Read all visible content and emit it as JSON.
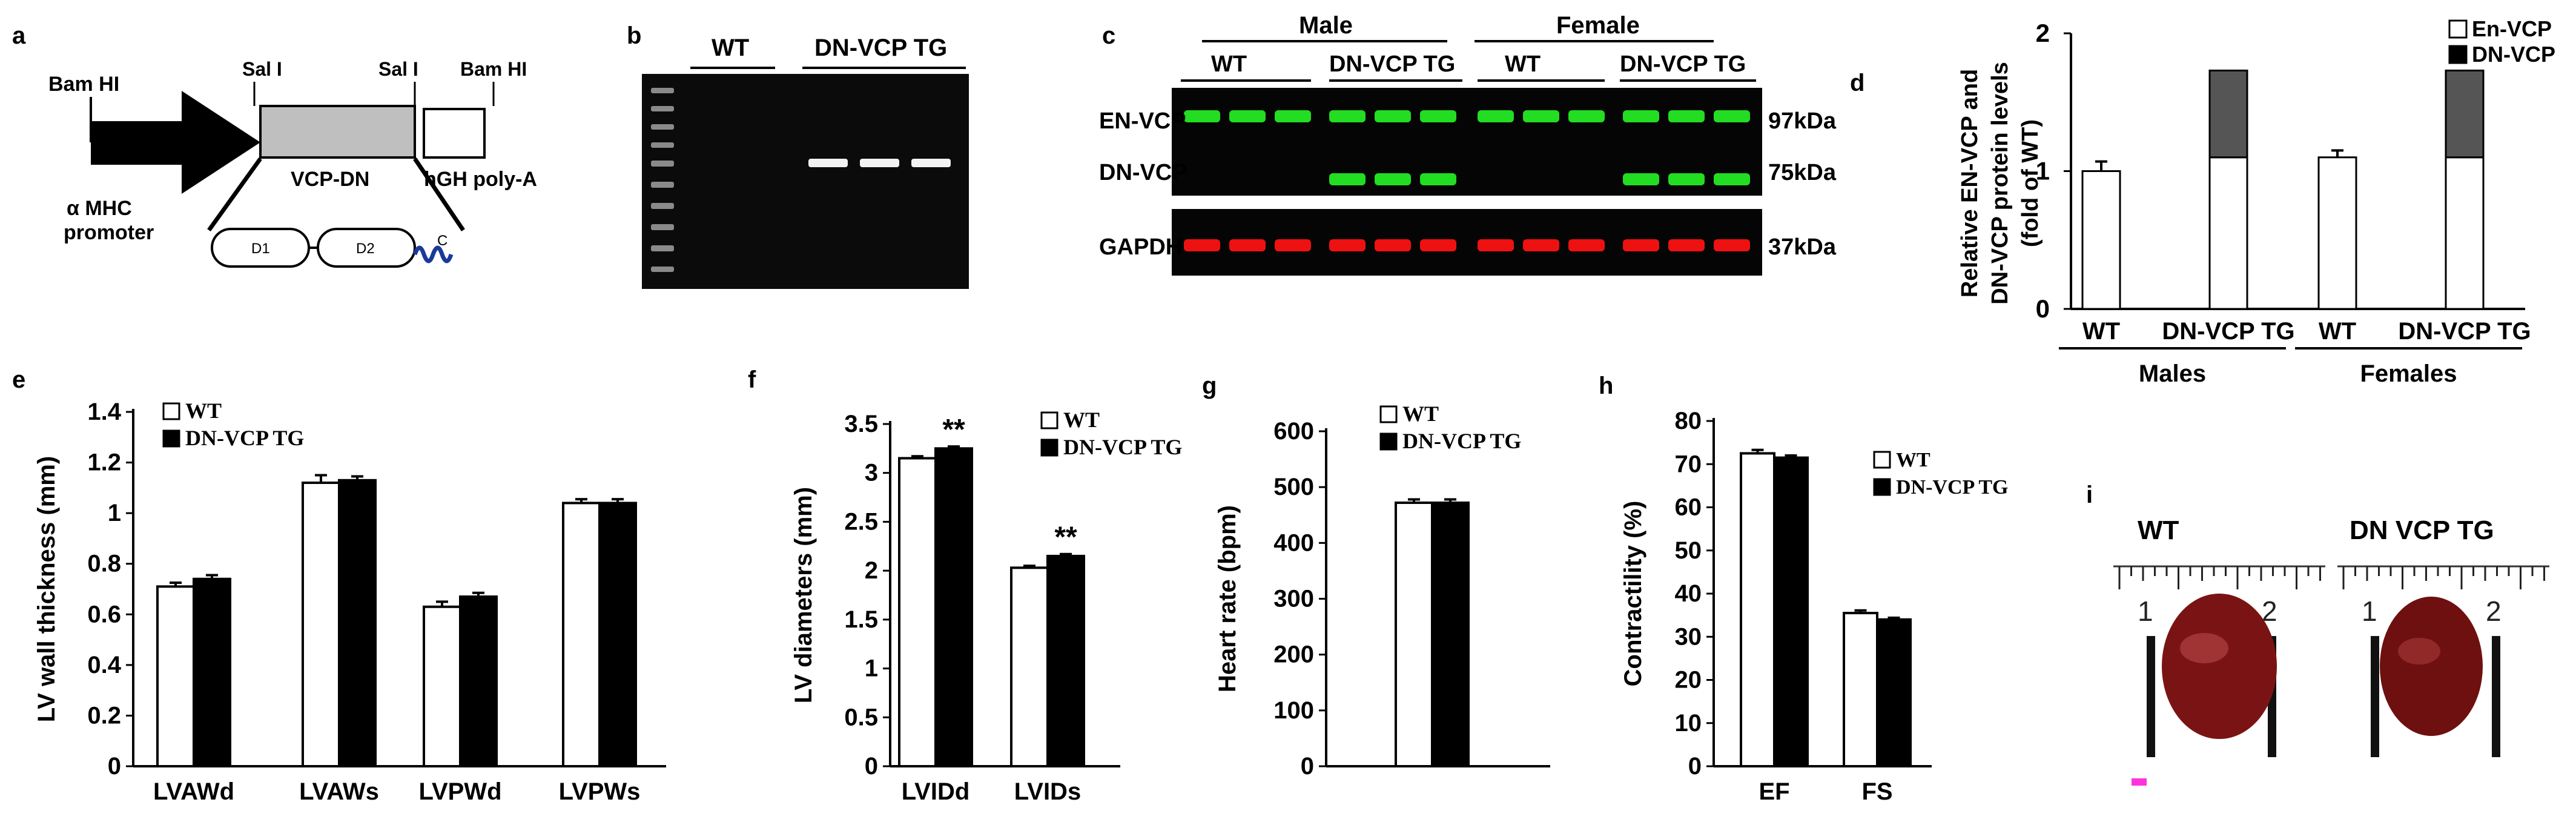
{
  "panel_letters": {
    "a": "a",
    "b": "b",
    "c": "c",
    "d": "d",
    "e": "e",
    "f": "f",
    "g": "g",
    "h": "h",
    "i": "i"
  },
  "panel_a": {
    "bamhi_left": "Bam HI",
    "sali_1": "Sal I",
    "sali_2": "Sal I",
    "bamhi_right": "Bam HI",
    "promoter": "α MHC",
    "promoter2": "promoter",
    "vcp": "VCP-DN",
    "hgh": "hGH poly-A",
    "d1": "D1",
    "d2": "D2",
    "c": "C"
  },
  "panel_b": {
    "wt": "WT",
    "tg": "DN-VCP TG"
  },
  "panel_c": {
    "male": "Male",
    "female": "Female",
    "wt1": "WT",
    "tg1": "DN-VCP TG",
    "wt2": "WT",
    "tg2": "DN-VCP TG",
    "row1": "EN-VCP",
    "row2": "DN-VCP",
    "row3": "GAPDH",
    "kda1": "97kDa",
    "kda2": "75kDa",
    "kda3": "37kDa",
    "green": "#22dd22",
    "red": "#ee1111"
  },
  "chart_data": [
    {
      "panel": "d",
      "type": "bar",
      "stacked": true,
      "ylabel_lines": [
        "Relative EN-VCP and",
        "DN-VCP protein levels",
        "(fold of WT)"
      ],
      "ylim": [
        0,
        2
      ],
      "yticks": [
        0,
        1,
        2
      ],
      "categories": [
        "WT",
        "DN-VCP TG",
        "WT",
        "DN-VCP TG"
      ],
      "groups": [
        {
          "label": "Males",
          "span": [
            0,
            1
          ]
        },
        {
          "label": "Females",
          "span": [
            2,
            3
          ]
        }
      ],
      "series": [
        {
          "name": "En-VCP",
          "color": "#ffffff",
          "values": [
            1.0,
            1.1,
            1.1,
            1.1
          ],
          "err": [
            0.07,
            0,
            0.05,
            0
          ]
        },
        {
          "name": "DN-VCP",
          "color": "#555555",
          "values": [
            0,
            0.63,
            0,
            0.63
          ]
        }
      ],
      "legend": "top-right"
    },
    {
      "panel": "e",
      "type": "bar",
      "ylabel": "LV wall thickness (mm)",
      "ylim": [
        0,
        1.4
      ],
      "yticks": [
        "0",
        "0.2",
        "0.4",
        "0.6",
        "0.8",
        "1",
        "1.2",
        "1.4"
      ],
      "categories": [
        "LVAWd",
        "LVAWs",
        "LVPWd",
        "LVPWs"
      ],
      "series": [
        {
          "name": "WT",
          "color": "#ffffff",
          "values": [
            0.71,
            1.12,
            0.63,
            1.04
          ],
          "err": [
            0.015,
            0.03,
            0.02,
            0.015
          ]
        },
        {
          "name": "DN-VCP TG",
          "color": "#000000",
          "values": [
            0.74,
            1.13,
            0.67,
            1.04
          ],
          "err": [
            0.015,
            0.015,
            0.015,
            0.015
          ]
        }
      ],
      "legend": "top-left"
    },
    {
      "panel": "f",
      "type": "bar",
      "ylabel": "LV diameters (mm)",
      "ylim": [
        0,
        3.5
      ],
      "yticks": [
        "0",
        "0.5",
        "1",
        "1.5",
        "2",
        "2.5",
        "3",
        "3.5"
      ],
      "categories": [
        "LVIDd",
        "LVIDs"
      ],
      "series": [
        {
          "name": "WT",
          "color": "#ffffff",
          "values": [
            3.15,
            2.03
          ],
          "err": [
            0.02,
            0.02
          ]
        },
        {
          "name": "DN-VCP TG",
          "color": "#000000",
          "values": [
            3.25,
            2.15
          ],
          "err": [
            0.02,
            0.02
          ]
        }
      ],
      "annotations": [
        {
          "category": 0,
          "text": "**"
        },
        {
          "category": 1,
          "text": "**"
        }
      ],
      "legend": "top-right"
    },
    {
      "panel": "g",
      "type": "bar",
      "ylabel": "Heart rate (bpm)",
      "ylim": [
        0,
        600
      ],
      "yticks": [
        "0",
        "100",
        "200",
        "300",
        "400",
        "500",
        "600"
      ],
      "categories": [
        ""
      ],
      "series": [
        {
          "name": "WT",
          "color": "#ffffff",
          "values": [
            472
          ],
          "err": [
            6
          ]
        },
        {
          "name": "DN-VCP TG",
          "color": "#000000",
          "values": [
            472
          ],
          "err": [
            6
          ]
        }
      ],
      "legend": "top-right"
    },
    {
      "panel": "h",
      "type": "bar",
      "ylabel": "Contractility (%)",
      "ylim": [
        0,
        80
      ],
      "yticks": [
        "0",
        "10",
        "20",
        "30",
        "40",
        "50",
        "60",
        "70",
        "80"
      ],
      "categories": [
        "EF",
        "FS"
      ],
      "series": [
        {
          "name": "WT",
          "color": "#ffffff",
          "values": [
            72.5,
            35.5
          ],
          "err": [
            0.8,
            0.6
          ]
        },
        {
          "name": "DN-VCP TG",
          "color": "#000000",
          "values": [
            71.5,
            34
          ],
          "err": [
            0.5,
            0.4
          ]
        }
      ],
      "legend": "top-right"
    }
  ],
  "panel_i": {
    "wt": "WT",
    "tg": "DN VCP TG",
    "r1": "1",
    "r2": "2"
  }
}
